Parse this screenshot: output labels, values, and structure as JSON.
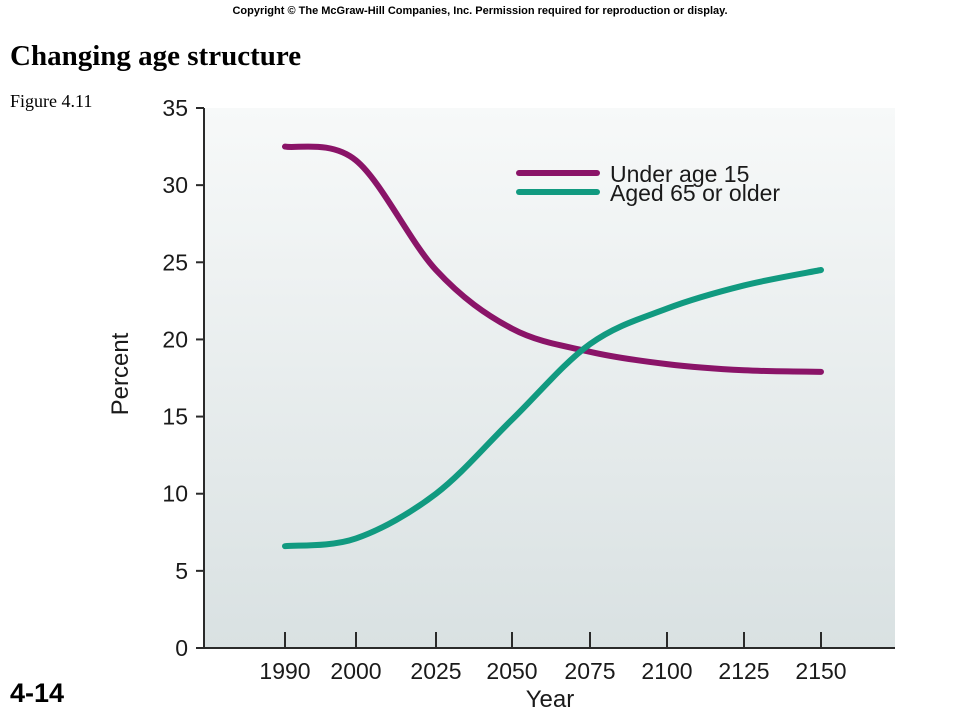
{
  "header": {
    "copyright": "Copyright © The McGraw-Hill Companies, Inc. Permission required for reproduction or display.",
    "title": "Changing age structure",
    "figure": "Figure 4.11",
    "slide_number": "4-14"
  },
  "colors": {
    "under15": "#8a1468",
    "aged65": "#119a80",
    "plot_bg_top": "#f7f9f9",
    "plot_bg_bottom": "#d9e1e2"
  },
  "chart_data": {
    "type": "line",
    "title": "",
    "xlabel": "Year",
    "ylabel": "Percent",
    "categories": [
      "1990",
      "2000",
      "2025",
      "2050",
      "2075",
      "2100",
      "2125",
      "2150"
    ],
    "ylim": [
      0,
      35
    ],
    "yticks": [
      "0",
      "5",
      "10",
      "15",
      "20",
      "25",
      "30",
      "35"
    ],
    "grid": false,
    "legend_position": "top-right",
    "series": [
      {
        "name": "Under age 15",
        "color": "#8a1468",
        "values": [
          32.5,
          31.6,
          24.5,
          20.7,
          19.2,
          18.4,
          18.0,
          17.9
        ]
      },
      {
        "name": "Aged 65 or older",
        "color": "#119a80",
        "values": [
          6.6,
          7.1,
          10.0,
          14.8,
          19.7,
          22.0,
          23.5,
          24.5
        ]
      }
    ]
  }
}
